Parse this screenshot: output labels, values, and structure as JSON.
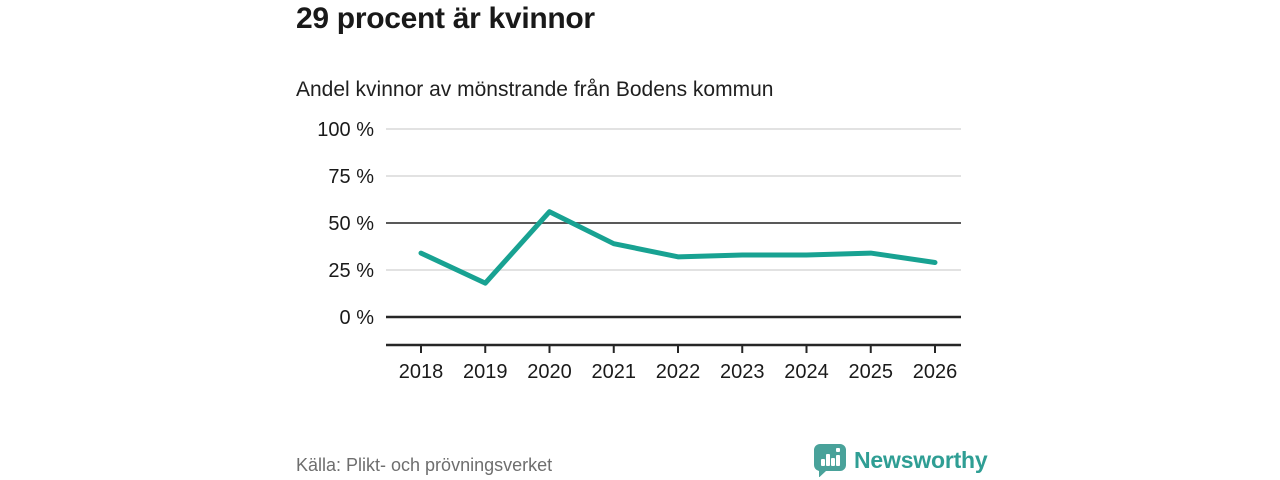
{
  "header": {
    "title": "29 procent är kvinnor",
    "subtitle": "Andel kvinnor av mönstrande från Bodens kommun"
  },
  "chart_data": {
    "type": "line",
    "title": "29 procent är kvinnor",
    "subtitle": "Andel kvinnor av mönstrande från Bodens kommun",
    "categories": [
      "2018",
      "2019",
      "2020",
      "2021",
      "2022",
      "2023",
      "2024",
      "2025",
      "2026"
    ],
    "values": [
      34,
      18,
      56,
      39,
      32,
      33,
      33,
      34,
      29
    ],
    "unit": "%",
    "xlabel": "",
    "ylabel": "",
    "ylim": [
      0,
      100
    ],
    "yticks": [
      {
        "value": 100,
        "label": "100 %"
      },
      {
        "value": 75,
        "label": "75 %"
      },
      {
        "value": 50,
        "label": "50 %"
      },
      {
        "value": 25,
        "label": "25 %"
      },
      {
        "value": 0,
        "label": "0 %"
      }
    ],
    "grid": true,
    "emphasized_gridlines": [
      50,
      0
    ],
    "legend_position": "none"
  },
  "footer": {
    "source": "Källa: Plikt- och prövningsverket",
    "brand": "Newsworthy"
  },
  "colors": {
    "line": "#18a292",
    "grid_light": "#d9d9d9",
    "grid_mid": "#595959",
    "axis_dark": "#262626",
    "text_dark": "#1a1a1a",
    "text_gray": "#6e6e6e",
    "brand_teal": "#2f9e94",
    "brand_icon": "#49a29a"
  }
}
